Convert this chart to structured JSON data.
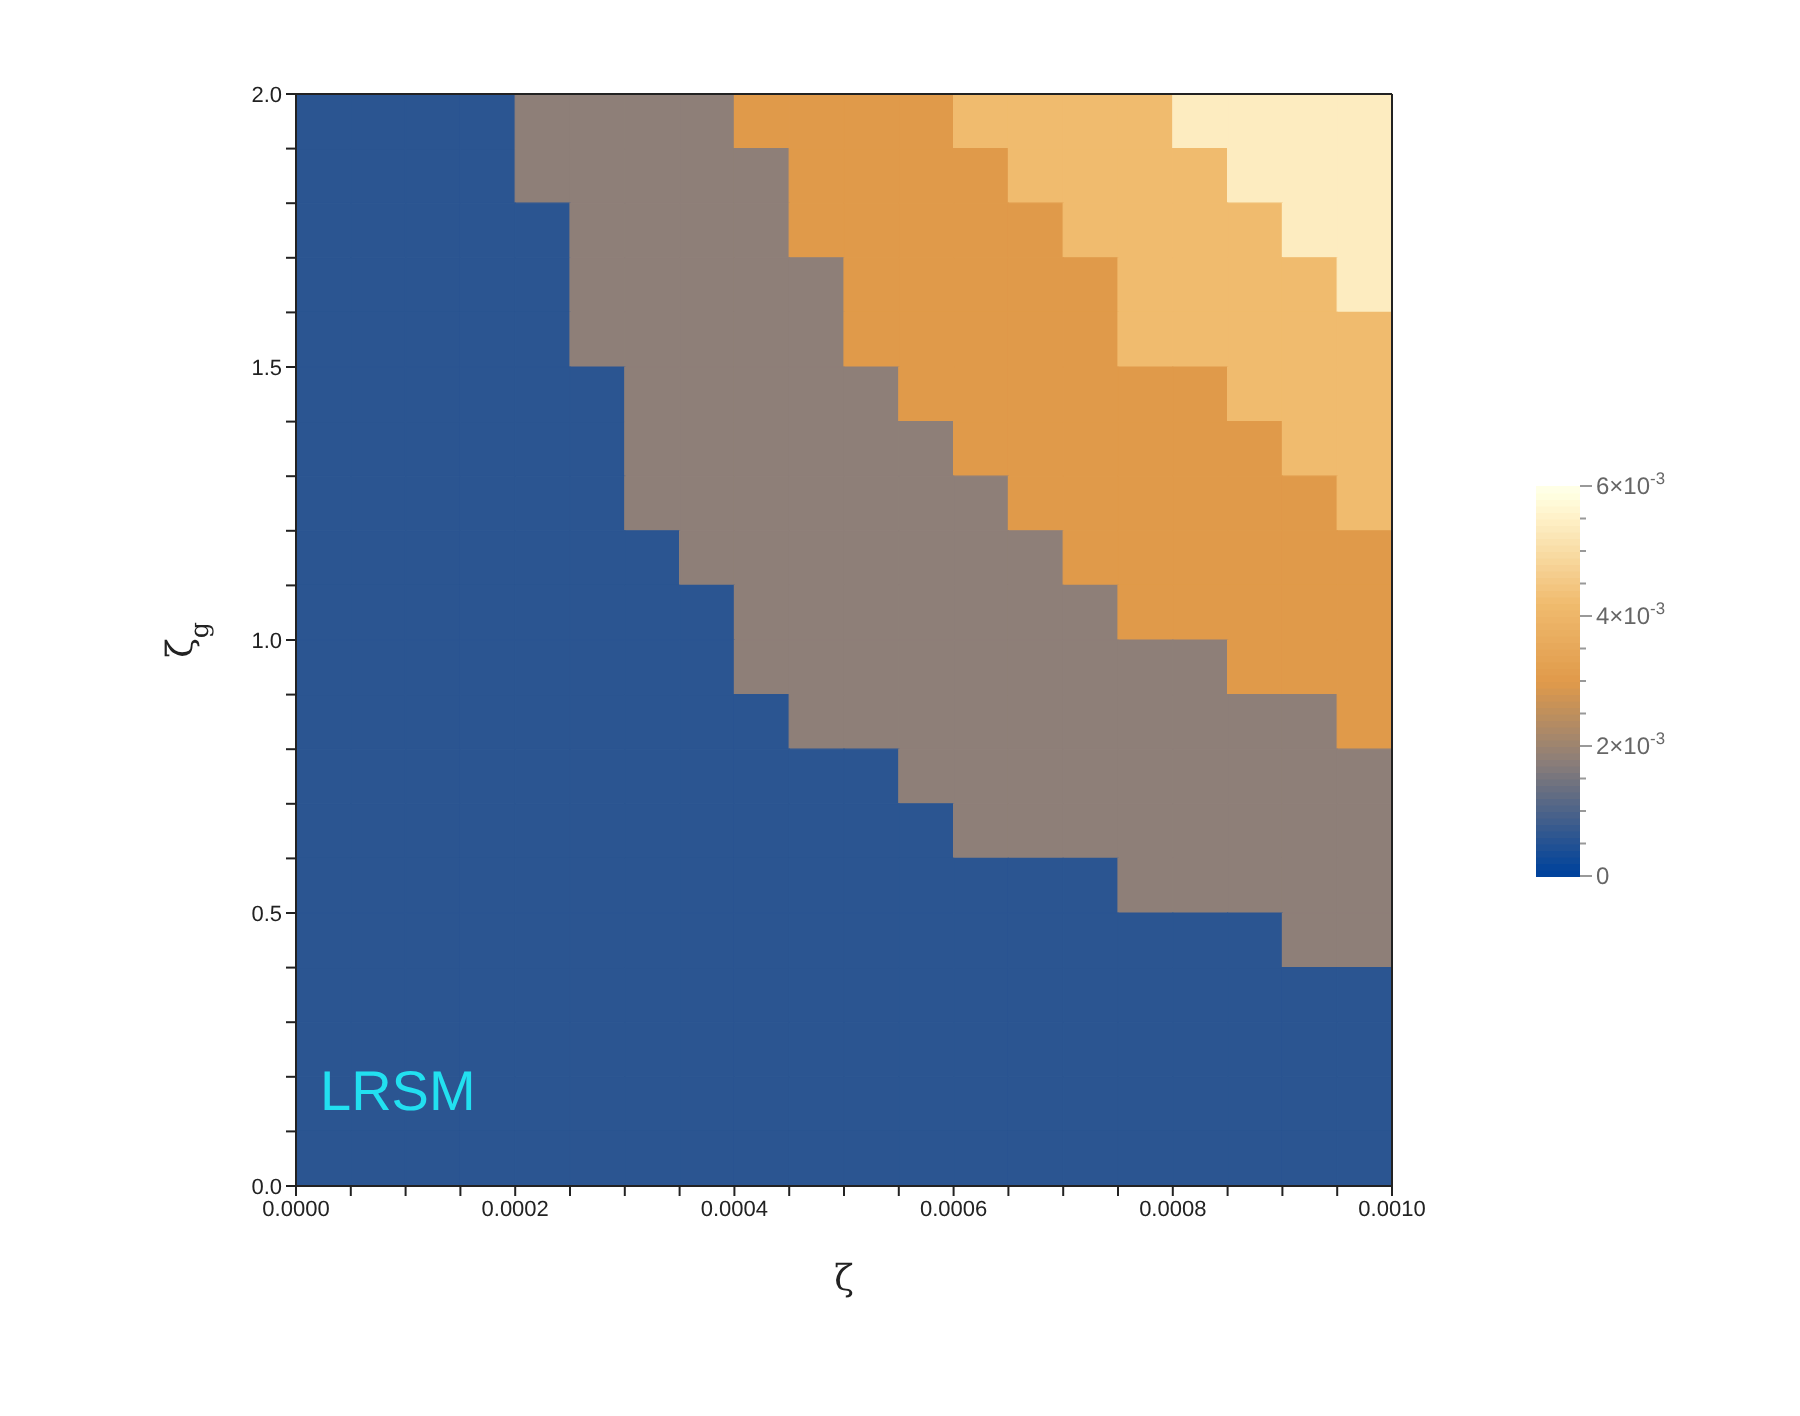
{
  "chart_data": {
    "type": "heatmap",
    "xlabel": "ζ",
    "ylabel": "ζ$_{g}$",
    "annotations": [
      "LRSM"
    ],
    "xlim": [
      0,
      0.001
    ],
    "xticks": [
      {
        "value": 0,
        "label": "0.0000"
      },
      {
        "value": 5e-05,
        "label": null
      },
      {
        "value": 0.0001,
        "label": null
      },
      {
        "value": 0.00015,
        "label": null
      },
      {
        "value": 0.0002,
        "label": "0.0002"
      },
      {
        "value": 0.00025,
        "label": null
      },
      {
        "value": 0.0003,
        "label": null
      },
      {
        "value": 0.00035,
        "label": null
      },
      {
        "value": 0.0004,
        "label": "0.0004"
      },
      {
        "value": 0.00045,
        "label": null
      },
      {
        "value": 0.0005,
        "label": null
      },
      {
        "value": 0.00055,
        "label": null
      },
      {
        "value": 0.0006,
        "label": "0.0006"
      },
      {
        "value": 0.00065,
        "label": null
      },
      {
        "value": 0.0007,
        "label": null
      },
      {
        "value": 0.00075,
        "label": null
      },
      {
        "value": 0.0008,
        "label": "0.0008"
      },
      {
        "value": 0.00085,
        "label": null
      },
      {
        "value": 0.0009,
        "label": null
      },
      {
        "value": 0.00095,
        "label": null
      },
      {
        "value": 0.001,
        "label": "0.0010"
      }
    ],
    "ylim": [
      0,
      2
    ],
    "yticks": [
      {
        "value": 0,
        "label": "0.0"
      },
      {
        "value": 0.1,
        "label": null
      },
      {
        "value": 0.2,
        "label": null
      },
      {
        "value": 0.3,
        "label": null
      },
      {
        "value": 0.4,
        "label": null
      },
      {
        "value": 0.5,
        "label": "0.5"
      },
      {
        "value": 0.6,
        "label": null
      },
      {
        "value": 0.7,
        "label": null
      },
      {
        "value": 0.8,
        "label": null
      },
      {
        "value": 0.9,
        "label": null
      },
      {
        "value": 1,
        "label": "1.0"
      },
      {
        "value": 1.1,
        "label": null
      },
      {
        "value": 1.2,
        "label": null
      },
      {
        "value": 1.3,
        "label": null
      },
      {
        "value": 1.4,
        "label": null
      },
      {
        "value": 1.5,
        "label": "1.5"
      },
      {
        "value": 1.6,
        "label": null
      },
      {
        "value": 1.7,
        "label": null
      },
      {
        "value": 1.8,
        "label": null
      },
      {
        "value": 1.9,
        "label": null
      },
      {
        "value": 2,
        "label": "2.0"
      }
    ],
    "clim": [
      0,
      0.006
    ],
    "cticks": [
      {
        "value": 0,
        "label": "0"
      },
      {
        "value": 0.0005,
        "label": null
      },
      {
        "value": 0.001,
        "label": null
      },
      {
        "value": 0.0015,
        "label": null
      },
      {
        "value": 0.002,
        "label": "2×10$^{-3}$"
      },
      {
        "value": 0.0025,
        "label": null
      },
      {
        "value": 0.003,
        "label": null
      },
      {
        "value": 0.0035,
        "label": null
      },
      {
        "value": 0.004,
        "label": "4×10$^{-3}$"
      },
      {
        "value": 0.0045,
        "label": null
      },
      {
        "value": 0.005,
        "label": null
      },
      {
        "value": 0.0055,
        "label": null
      },
      {
        "value": 0.006,
        "label": "6×10$^{-3}$"
      }
    ],
    "colors": [
      "#2b5591",
      "#8e7f78",
      "#e09a4a",
      "#f0bb6e",
      "#fdecc0"
    ],
    "cells": [
      [
        0.0006,
        0.0006,
        0.0006,
        0.0006,
        0.0018,
        0.0018,
        0.0018,
        0.0018,
        0.003,
        0.003,
        0.003,
        0.003,
        0.0042,
        0.0042,
        0.0042,
        0.0042,
        0.0054,
        0.0054,
        0.0054,
        0.0054
      ],
      [
        0.0006,
        0.0006,
        0.0006,
        0.0006,
        0.0018,
        0.0018,
        0.0018,
        0.0018,
        0.0018,
        0.003,
        0.003,
        0.003,
        0.003,
        0.0042,
        0.0042,
        0.0042,
        0.0042,
        0.0054,
        0.0054,
        0.0054
      ],
      [
        0.0006,
        0.0006,
        0.0006,
        0.0006,
        0.0006,
        0.0018,
        0.0018,
        0.0018,
        0.0018,
        0.003,
        0.003,
        0.003,
        0.003,
        0.003,
        0.0042,
        0.0042,
        0.0042,
        0.0042,
        0.0054,
        0.0054
      ],
      [
        0.0006,
        0.0006,
        0.0006,
        0.0006,
        0.0006,
        0.0018,
        0.0018,
        0.0018,
        0.0018,
        0.0018,
        0.003,
        0.003,
        0.003,
        0.003,
        0.003,
        0.0042,
        0.0042,
        0.0042,
        0.0042,
        0.0054
      ],
      [
        0.0006,
        0.0006,
        0.0006,
        0.0006,
        0.0006,
        0.0018,
        0.0018,
        0.0018,
        0.0018,
        0.0018,
        0.003,
        0.003,
        0.003,
        0.003,
        0.003,
        0.0042,
        0.0042,
        0.0042,
        0.0042,
        0.0042
      ],
      [
        0.0006,
        0.0006,
        0.0006,
        0.0006,
        0.0006,
        0.0006,
        0.0018,
        0.0018,
        0.0018,
        0.0018,
        0.0018,
        0.003,
        0.003,
        0.003,
        0.003,
        0.003,
        0.003,
        0.0042,
        0.0042,
        0.0042
      ],
      [
        0.0006,
        0.0006,
        0.0006,
        0.0006,
        0.0006,
        0.0006,
        0.0018,
        0.0018,
        0.0018,
        0.0018,
        0.0018,
        0.0018,
        0.003,
        0.003,
        0.003,
        0.003,
        0.003,
        0.003,
        0.0042,
        0.0042
      ],
      [
        0.0006,
        0.0006,
        0.0006,
        0.0006,
        0.0006,
        0.0006,
        0.0018,
        0.0018,
        0.0018,
        0.0018,
        0.0018,
        0.0018,
        0.0018,
        0.003,
        0.003,
        0.003,
        0.003,
        0.003,
        0.003,
        0.0042
      ],
      [
        0.0006,
        0.0006,
        0.0006,
        0.0006,
        0.0006,
        0.0006,
        0.0006,
        0.0018,
        0.0018,
        0.0018,
        0.0018,
        0.0018,
        0.0018,
        0.0018,
        0.003,
        0.003,
        0.003,
        0.003,
        0.003,
        0.003
      ],
      [
        0.0006,
        0.0006,
        0.0006,
        0.0006,
        0.0006,
        0.0006,
        0.0006,
        0.0006,
        0.0018,
        0.0018,
        0.0018,
        0.0018,
        0.0018,
        0.0018,
        0.0018,
        0.003,
        0.003,
        0.003,
        0.003,
        0.003
      ],
      [
        0.0006,
        0.0006,
        0.0006,
        0.0006,
        0.0006,
        0.0006,
        0.0006,
        0.0006,
        0.0018,
        0.0018,
        0.0018,
        0.0018,
        0.0018,
        0.0018,
        0.0018,
        0.0018,
        0.0018,
        0.003,
        0.003,
        0.003
      ],
      [
        0.0006,
        0.0006,
        0.0006,
        0.0006,
        0.0006,
        0.0006,
        0.0006,
        0.0006,
        0.0006,
        0.0018,
        0.0018,
        0.0018,
        0.0018,
        0.0018,
        0.0018,
        0.0018,
        0.0018,
        0.0018,
        0.0018,
        0.003
      ],
      [
        0.0006,
        0.0006,
        0.0006,
        0.0006,
        0.0006,
        0.0006,
        0.0006,
        0.0006,
        0.0006,
        0.0006,
        0.0006,
        0.0018,
        0.0018,
        0.0018,
        0.0018,
        0.0018,
        0.0018,
        0.0018,
        0.0018,
        0.0018
      ],
      [
        0.0006,
        0.0006,
        0.0006,
        0.0006,
        0.0006,
        0.0006,
        0.0006,
        0.0006,
        0.0006,
        0.0006,
        0.0006,
        0.0006,
        0.0018,
        0.0018,
        0.0018,
        0.0018,
        0.0018,
        0.0018,
        0.0018,
        0.0018
      ],
      [
        0.0006,
        0.0006,
        0.0006,
        0.0006,
        0.0006,
        0.0006,
        0.0006,
        0.0006,
        0.0006,
        0.0006,
        0.0006,
        0.0006,
        0.0006,
        0.0006,
        0.0006,
        0.0018,
        0.0018,
        0.0018,
        0.0018,
        0.0018
      ],
      [
        0.0006,
        0.0006,
        0.0006,
        0.0006,
        0.0006,
        0.0006,
        0.0006,
        0.0006,
        0.0006,
        0.0006,
        0.0006,
        0.0006,
        0.0006,
        0.0006,
        0.0006,
        0.0006,
        0.0006,
        0.0006,
        0.0018,
        0.0018
      ],
      [
        0.0006,
        0.0006,
        0.0006,
        0.0006,
        0.0006,
        0.0006,
        0.0006,
        0.0006,
        0.0006,
        0.0006,
        0.0006,
        0.0006,
        0.0006,
        0.0006,
        0.0006,
        0.0006,
        0.0006,
        0.0006,
        0.0006,
        0.0006
      ],
      [
        0.0006,
        0.0006,
        0.0006,
        0.0006,
        0.0006,
        0.0006,
        0.0006,
        0.0006,
        0.0006,
        0.0006,
        0.0006,
        0.0006,
        0.0006,
        0.0006,
        0.0006,
        0.0006,
        0.0006,
        0.0006,
        0.0006,
        0.0006
      ],
      [
        0.0006,
        0.0006,
        0.0006,
        0.0006,
        0.0006,
        0.0006,
        0.0006,
        0.0006,
        0.0006,
        0.0006,
        0.0006,
        0.0006,
        0.0006,
        0.0006,
        0.0006,
        0.0006,
        0.0006,
        0.0006,
        0.0006,
        0.0006
      ],
      [
        0.0006,
        0.0006,
        0.0006,
        0.0006,
        0.0006,
        0.0006,
        0.0006,
        0.0006,
        0.0006,
        0.0006,
        0.0006,
        0.0006,
        0.0006,
        0.0006,
        0.0006,
        0.0006,
        0.0006,
        0.0006,
        0.0006,
        0.0006
      ]
    ]
  }
}
